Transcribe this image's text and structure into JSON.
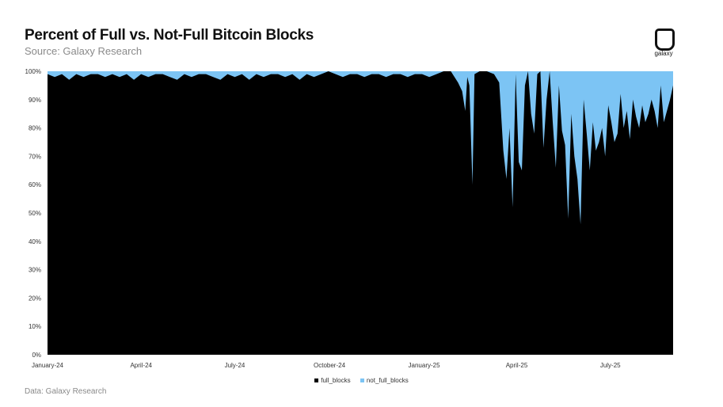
{
  "header": {
    "title": "Percent of Full vs. Not-Full Bitcoin Blocks",
    "subtitle": "Source: Galaxy Research"
  },
  "logo": {
    "icon": "galaxy-logo-icon",
    "text": "galaxy"
  },
  "footer": {
    "text": "Data: Galaxy Research"
  },
  "colors": {
    "full_blocks": "#000000",
    "not_full_blocks": "#7cc4f4"
  },
  "chart_data": {
    "type": "area",
    "stacked": true,
    "title": "Percent of Full vs. Not-Full Bitcoin Blocks",
    "xlabel": "",
    "ylabel": "",
    "x_range": [
      "2024-01-01",
      "2025-08-31"
    ],
    "ylim": [
      0,
      100
    ],
    "y_ticks": [
      "0%",
      "10%",
      "20%",
      "30%",
      "40%",
      "50%",
      "60%",
      "70%",
      "80%",
      "90%",
      "100%"
    ],
    "x_ticks": [
      {
        "label": "January-24",
        "date": "2024-01-01"
      },
      {
        "label": "April-24",
        "date": "2024-04-01"
      },
      {
        "label": "July-24",
        "date": "2024-07-01"
      },
      {
        "label": "October-24",
        "date": "2024-10-01"
      },
      {
        "label": "January-25",
        "date": "2025-01-01"
      },
      {
        "label": "April-25",
        "date": "2025-04-01"
      },
      {
        "label": "July-25",
        "date": "2025-07-01"
      }
    ],
    "grid": false,
    "legend_position": "bottom",
    "series": [
      {
        "name": "full_blocks",
        "x": [
          "2024-01-01",
          "2024-01-08",
          "2024-01-15",
          "2024-01-22",
          "2024-01-29",
          "2024-02-05",
          "2024-02-12",
          "2024-02-19",
          "2024-02-26",
          "2024-03-04",
          "2024-03-11",
          "2024-03-18",
          "2024-03-25",
          "2024-04-01",
          "2024-04-08",
          "2024-04-15",
          "2024-04-22",
          "2024-04-29",
          "2024-05-06",
          "2024-05-13",
          "2024-05-20",
          "2024-05-27",
          "2024-06-03",
          "2024-06-10",
          "2024-06-17",
          "2024-06-24",
          "2024-07-01",
          "2024-07-08",
          "2024-07-15",
          "2024-07-22",
          "2024-07-29",
          "2024-08-05",
          "2024-08-12",
          "2024-08-19",
          "2024-08-26",
          "2024-09-02",
          "2024-09-09",
          "2024-09-16",
          "2024-09-23",
          "2024-09-30",
          "2024-10-07",
          "2024-10-14",
          "2024-10-21",
          "2024-10-28",
          "2024-11-04",
          "2024-11-11",
          "2024-11-18",
          "2024-11-25",
          "2024-12-02",
          "2024-12-09",
          "2024-12-16",
          "2024-12-23",
          "2024-12-30",
          "2025-01-06",
          "2025-01-13",
          "2025-01-20",
          "2025-01-27",
          "2025-02-03",
          "2025-02-07",
          "2025-02-10",
          "2025-02-12",
          "2025-02-14",
          "2025-02-17",
          "2025-02-19",
          "2025-02-24",
          "2025-03-03",
          "2025-03-10",
          "2025-03-15",
          "2025-03-19",
          "2025-03-22",
          "2025-03-25",
          "2025-03-28",
          "2025-03-31",
          "2025-04-03",
          "2025-04-06",
          "2025-04-09",
          "2025-04-12",
          "2025-04-15",
          "2025-04-18",
          "2025-04-21",
          "2025-04-24",
          "2025-04-27",
          "2025-04-30",
          "2025-05-03",
          "2025-05-06",
          "2025-05-09",
          "2025-05-12",
          "2025-05-15",
          "2025-05-18",
          "2025-05-21",
          "2025-05-24",
          "2025-05-27",
          "2025-05-30",
          "2025-06-02",
          "2025-06-05",
          "2025-06-08",
          "2025-06-11",
          "2025-06-14",
          "2025-06-17",
          "2025-06-20",
          "2025-06-23",
          "2025-06-26",
          "2025-06-29",
          "2025-07-02",
          "2025-07-05",
          "2025-07-08",
          "2025-07-11",
          "2025-07-14",
          "2025-07-17",
          "2025-07-20",
          "2025-07-23",
          "2025-07-26",
          "2025-07-29",
          "2025-08-01",
          "2025-08-04",
          "2025-08-07",
          "2025-08-10",
          "2025-08-13",
          "2025-08-16",
          "2025-08-19",
          "2025-08-22",
          "2025-08-25",
          "2025-08-28",
          "2025-08-31"
        ],
        "values": [
          99,
          98,
          99,
          97,
          99,
          98,
          99,
          99,
          98,
          99,
          98,
          99,
          97,
          99,
          98,
          99,
          99,
          98,
          97,
          99,
          98,
          99,
          99,
          98,
          97,
          99,
          98,
          99,
          97,
          99,
          98,
          99,
          99,
          98,
          99,
          97,
          99,
          98,
          99,
          100,
          99,
          98,
          99,
          99,
          98,
          99,
          99,
          98,
          99,
          99,
          98,
          99,
          99,
          98,
          99,
          100,
          100,
          96,
          93,
          86,
          98,
          95,
          60,
          99,
          100,
          100,
          99,
          96,
          72,
          62,
          80,
          52,
          99,
          68,
          65,
          95,
          100,
          85,
          78,
          99,
          100,
          73,
          90,
          100,
          82,
          66,
          95,
          79,
          74,
          48,
          85,
          70,
          62,
          46,
          90,
          78,
          65,
          82,
          72,
          75,
          80,
          70,
          88,
          82,
          75,
          78,
          92,
          80,
          86,
          76,
          90,
          84,
          80,
          88,
          82,
          85,
          90,
          86,
          80,
          95,
          82,
          86,
          90,
          95
        ]
      },
      {
        "name": "not_full_blocks",
        "values": "100 minus full_blocks"
      }
    ]
  },
  "legend": {
    "items": [
      {
        "label": "full_blocks",
        "color": "#000000"
      },
      {
        "label": "not_full_blocks",
        "color": "#7cc4f4"
      }
    ]
  }
}
